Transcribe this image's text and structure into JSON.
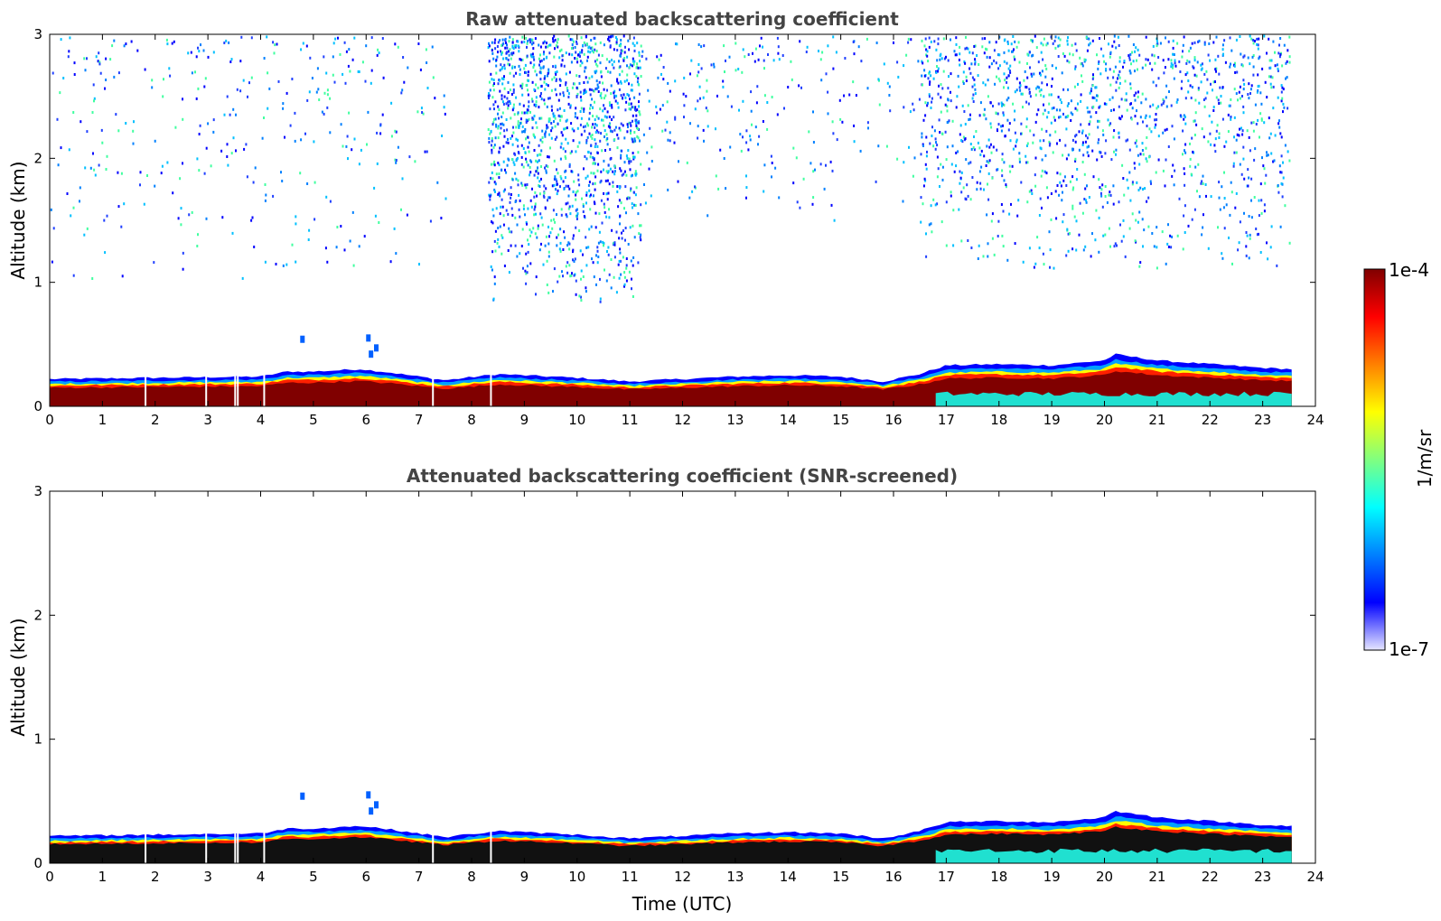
{
  "chart_data": [
    {
      "type": "heatmap",
      "title": "Raw attenuated backscattering coefficient",
      "xlabel": "",
      "ylabel": "Altitude (km)",
      "xlim": [
        0,
        24
      ],
      "ylim": [
        0,
        3
      ],
      "x_ticks": [
        "0",
        "1",
        "2",
        "3",
        "4",
        "5",
        "6",
        "7",
        "8",
        "9",
        "10",
        "11",
        "12",
        "13",
        "14",
        "15",
        "16",
        "17",
        "18",
        "19",
        "20",
        "21",
        "22",
        "23",
        "24"
      ],
      "y_ticks": [
        "0",
        "1",
        "2",
        "3"
      ],
      "data_end_time": 23.55,
      "boundary_layer_top_km": {
        "time": [
          0,
          2,
          4,
          4.5,
          5,
          5.9,
          6.5,
          7.5,
          8.5,
          10,
          11,
          12,
          13,
          14,
          15,
          15.8,
          16.5,
          17,
          18,
          19,
          20,
          20.2,
          21,
          22,
          23,
          23.55
        ],
        "height": [
          0.22,
          0.23,
          0.24,
          0.28,
          0.28,
          0.3,
          0.27,
          0.21,
          0.26,
          0.23,
          0.2,
          0.22,
          0.24,
          0.25,
          0.24,
          0.2,
          0.26,
          0.33,
          0.34,
          0.33,
          0.37,
          0.42,
          0.37,
          0.34,
          0.31,
          0.3
        ]
      },
      "noise_layer": true
    },
    {
      "type": "heatmap",
      "title": "Attenuated backscattering coefficient (SNR-screened)",
      "xlabel": "Time (UTC)",
      "ylabel": "Altitude (km)",
      "xlim": [
        0,
        24
      ],
      "ylim": [
        0,
        3
      ],
      "x_ticks": [
        "0",
        "1",
        "2",
        "3",
        "4",
        "5",
        "6",
        "7",
        "8",
        "9",
        "10",
        "11",
        "12",
        "13",
        "14",
        "15",
        "16",
        "17",
        "18",
        "19",
        "20",
        "21",
        "22",
        "23",
        "24"
      ],
      "y_ticks": [
        "0",
        "1",
        "2",
        "3"
      ],
      "data_end_time": 23.55,
      "boundary_layer_top_km": {
        "time": [
          0,
          2,
          4,
          4.5,
          5,
          5.9,
          6.5,
          7.5,
          8.5,
          10,
          11,
          12,
          13,
          14,
          15,
          15.8,
          16.5,
          17,
          18,
          19,
          20,
          20.2,
          21,
          22,
          23,
          23.55
        ],
        "height": [
          0.22,
          0.23,
          0.24,
          0.28,
          0.28,
          0.3,
          0.27,
          0.21,
          0.26,
          0.23,
          0.2,
          0.22,
          0.24,
          0.25,
          0.24,
          0.2,
          0.26,
          0.33,
          0.34,
          0.33,
          0.37,
          0.42,
          0.37,
          0.34,
          0.31,
          0.3
        ]
      },
      "noise_layer": false
    }
  ],
  "colorbar": {
    "label": "1/m/sr",
    "max_label": "1e-4",
    "min_label": "1e-7",
    "scale": "log",
    "colormap": "jet",
    "colors": [
      "#e6e6ff",
      "#0000ff",
      "#0080ff",
      "#00ffff",
      "#80ff80",
      "#ffff00",
      "#ff8000",
      "#ff0000",
      "#800000"
    ]
  }
}
